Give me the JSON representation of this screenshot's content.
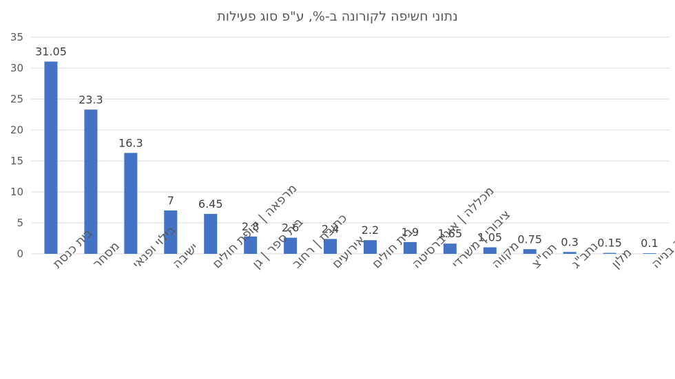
{
  "chart_data": {
    "type": "bar",
    "title": "נתוני חשיפה לקורונה ב-%, ע\"פ סוג פעילות",
    "categories": [
      "בית כנסת",
      "מסחר",
      "בילוי ופנאי",
      "ישיבה",
      "מרפאה | קופת חולים",
      "בית ספר | גן",
      "כתובת | רחוב",
      "אירועים",
      "בית חולים",
      "מכללה | אוניברסיטה",
      "ציבורי | משרדי",
      "מקווה",
      "תח\"צ",
      "נתב\"ג",
      "מלון",
      "אתר בנייה"
    ],
    "values": [
      31.05,
      23.3,
      16.3,
      7,
      6.45,
      2.8,
      2.6,
      2.4,
      2.2,
      1.9,
      1.65,
      1.05,
      0.75,
      0.3,
      0.15,
      0.1
    ],
    "value_labels": [
      "31.05",
      "23.3",
      "16.3",
      "7",
      "6.45",
      "2.8",
      "2.6",
      "2.4",
      "2.2",
      "1.9",
      "1.65",
      "1.05",
      "0.75",
      "0.3",
      "0.15",
      "0.1"
    ],
    "ylim": [
      0,
      35
    ],
    "yticks": [
      "0",
      "5",
      "10",
      "15",
      "20",
      "25",
      "30",
      "35"
    ],
    "grid": true,
    "colors": {
      "bar": "#4472c4",
      "grid": "#d9d9d9",
      "text": "#595959"
    }
  }
}
